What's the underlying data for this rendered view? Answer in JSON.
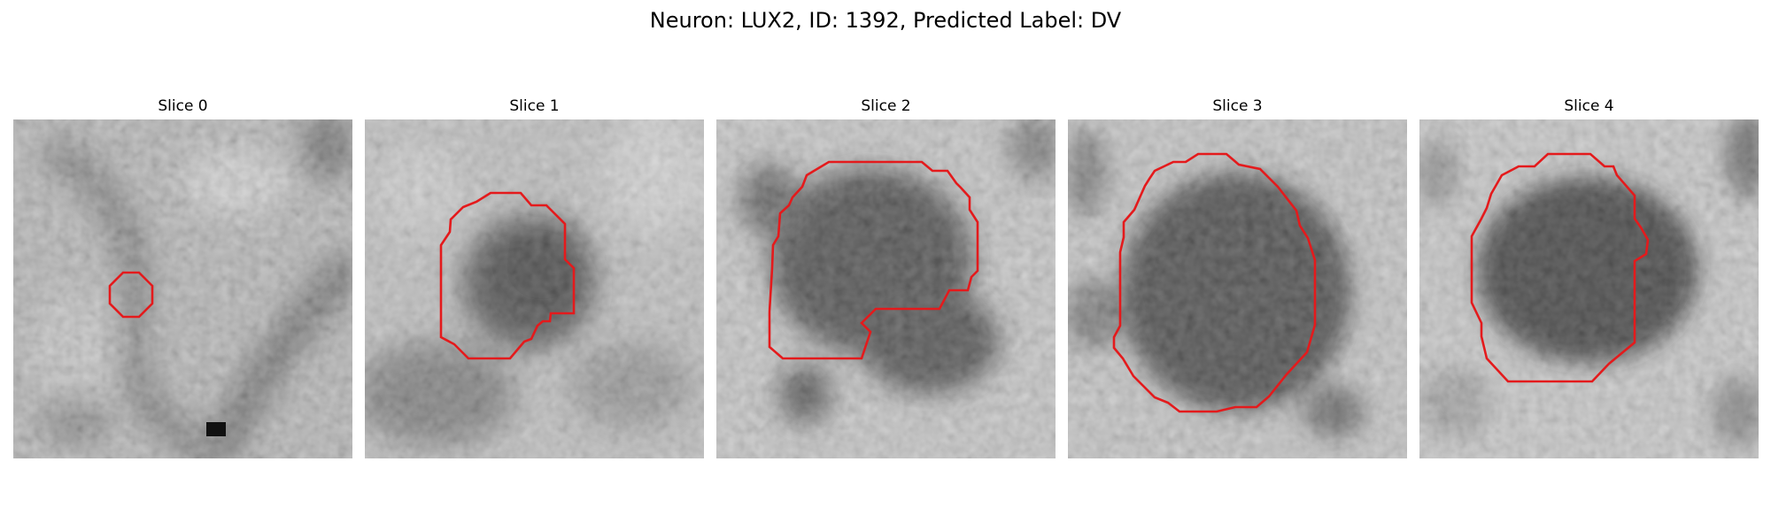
{
  "figure": {
    "title": "Neuron: LUX2, ID: 1392, Predicted Label: DV"
  },
  "slices": [
    {
      "title": "Slice 0"
    },
    {
      "title": "Slice 1"
    },
    {
      "title": "Slice 2"
    },
    {
      "title": "Slice 3"
    },
    {
      "title": "Slice 4"
    }
  ],
  "colors": {
    "contour": "#e41a1c",
    "background": "#ffffff"
  }
}
